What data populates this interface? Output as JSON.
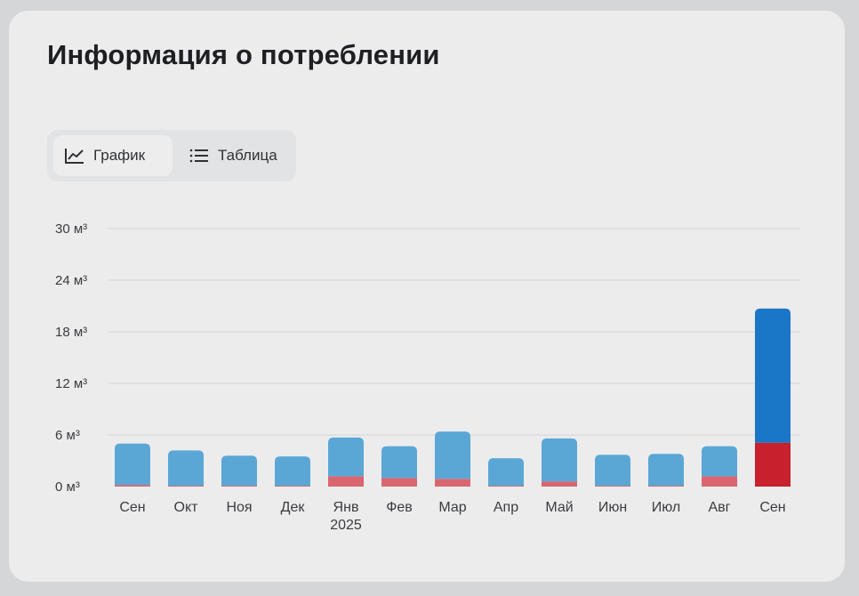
{
  "header": {
    "title": "Информация о потреблении"
  },
  "view_toggle": {
    "graph_label": "График",
    "graph_icon": "line-chart-icon",
    "table_label": "Таблица",
    "table_icon": "list-icon",
    "active": "graph"
  },
  "chart_data": {
    "type": "bar",
    "stacked": true,
    "categories": [
      "Сен",
      "Окт",
      "Ноя",
      "Дек",
      "Янв",
      "Фев",
      "Мар",
      "Апр",
      "Май",
      "Июн",
      "Июл",
      "Авг",
      "Сен"
    ],
    "category_sublabels": [
      "",
      "",
      "",
      "",
      "2025",
      "",
      "",
      "",
      "",
      "",
      "",
      "",
      ""
    ],
    "series": [
      {
        "color": "#d9666f",
        "current_color": "#c8202c",
        "values": [
          0.2,
          0.1,
          0.1,
          0.1,
          1.2,
          1.0,
          0.9,
          0.1,
          0.6,
          0.1,
          0.1,
          1.2,
          5.1
        ]
      },
      {
        "color": "#5aa7d6",
        "current_color": "#1a76c6",
        "values": [
          4.8,
          4.1,
          3.5,
          3.4,
          4.5,
          3.7,
          5.5,
          3.2,
          5.0,
          3.6,
          3.7,
          3.5,
          15.6
        ]
      }
    ],
    "y_ticks": [
      "0 м³",
      "6 м³",
      "12 м³",
      "18 м³",
      "24 м³",
      "30 м³"
    ],
    "ylim": [
      0,
      30
    ],
    "grid": true,
    "highlight_last": true
  }
}
